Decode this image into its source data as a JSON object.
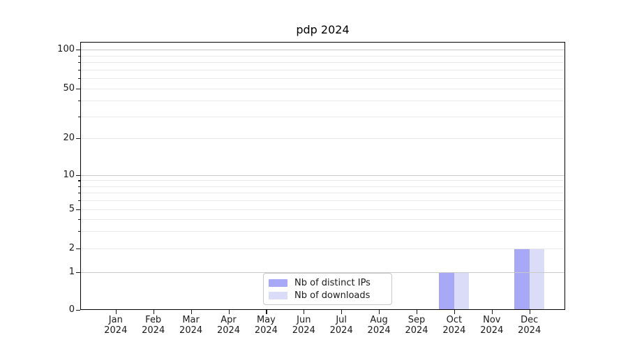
{
  "figure": {
    "background": "#ffffff"
  },
  "chart_data": {
    "type": "bar",
    "title": "pdp 2024",
    "categories": [
      [
        "Jan",
        "2024"
      ],
      [
        "Feb",
        "2024"
      ],
      [
        "Mar",
        "2024"
      ],
      [
        "Apr",
        "2024"
      ],
      [
        "May",
        "2024"
      ],
      [
        "Jun",
        "2024"
      ],
      [
        "Jul",
        "2024"
      ],
      [
        "Aug",
        "2024"
      ],
      [
        "Sep",
        "2024"
      ],
      [
        "Oct",
        "2024"
      ],
      [
        "Nov",
        "2024"
      ],
      [
        "Dec",
        "2024"
      ]
    ],
    "series": [
      {
        "name": "Nb of distinct IPs",
        "color": "#a8a8f6",
        "values": [
          0,
          0,
          0,
          0,
          0,
          0,
          0,
          0,
          0,
          1,
          0,
          2
        ]
      },
      {
        "name": "Nb of downloads",
        "color": "#dadcf8",
        "values": [
          0,
          0,
          0,
          0,
          0,
          0,
          0,
          0,
          0,
          1,
          0,
          2
        ]
      }
    ],
    "xlabel": "",
    "ylabel": "",
    "yscale": "symlog",
    "ylim": [
      0,
      115
    ],
    "yticks_major": [
      0,
      1,
      2,
      5,
      10,
      20,
      50,
      100
    ],
    "yticks_minor": [
      3,
      4,
      6,
      7,
      8,
      9,
      30,
      40,
      60,
      70,
      80,
      90
    ],
    "grid": "horizontal",
    "legend_position": "lower center"
  },
  "colors": {
    "spine": "#000000",
    "grid_decade": "#c9c9c9",
    "grid_minor": "#e9e9e9",
    "tick": "#1a1a1a",
    "tick_label": "#1a1a1a",
    "legend_border": "#c9c9c9"
  }
}
